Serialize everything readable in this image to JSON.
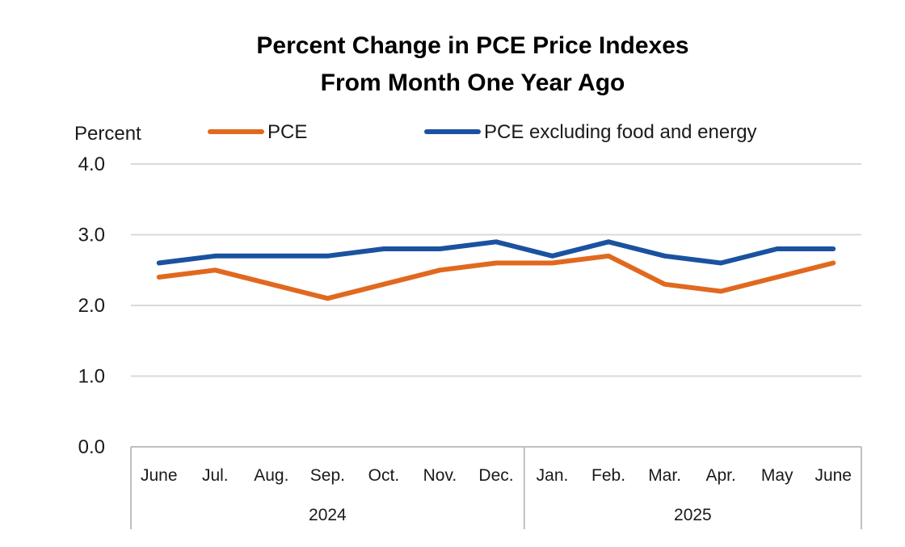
{
  "chart_data": {
    "type": "line",
    "title": "Percent Change in PCE Price Indexes",
    "subtitle": "From Month One Year Ago",
    "ylabel": "Percent",
    "xlabel": "",
    "ylim": [
      0,
      4
    ],
    "yticks": [
      "4.0",
      "3.0",
      "2.0",
      "1.0",
      "0.0"
    ],
    "ytick_values": [
      4,
      3,
      2,
      1,
      0
    ],
    "grid": true,
    "legend_position": "top",
    "categories": [
      "June",
      "Jul.",
      "Aug.",
      "Sep.",
      "Oct.",
      "Nov.",
      "Dec.",
      "Jan.",
      "Feb.",
      "Mar.",
      "Apr.",
      "May",
      "June"
    ],
    "groups": [
      {
        "label": "2024",
        "start": 0,
        "end": 6
      },
      {
        "label": "2025",
        "start": 7,
        "end": 12
      }
    ],
    "series": [
      {
        "name": "PCE",
        "color": "#E0691F",
        "values": [
          2.4,
          2.5,
          2.3,
          2.1,
          2.3,
          2.5,
          2.6,
          2.6,
          2.7,
          2.3,
          2.2,
          2.4,
          2.6
        ]
      },
      {
        "name": "PCE excluding food and energy",
        "color": "#1A52A0",
        "values": [
          2.6,
          2.7,
          2.7,
          2.7,
          2.8,
          2.8,
          2.9,
          2.7,
          2.9,
          2.7,
          2.6,
          2.8,
          2.8
        ]
      }
    ]
  }
}
